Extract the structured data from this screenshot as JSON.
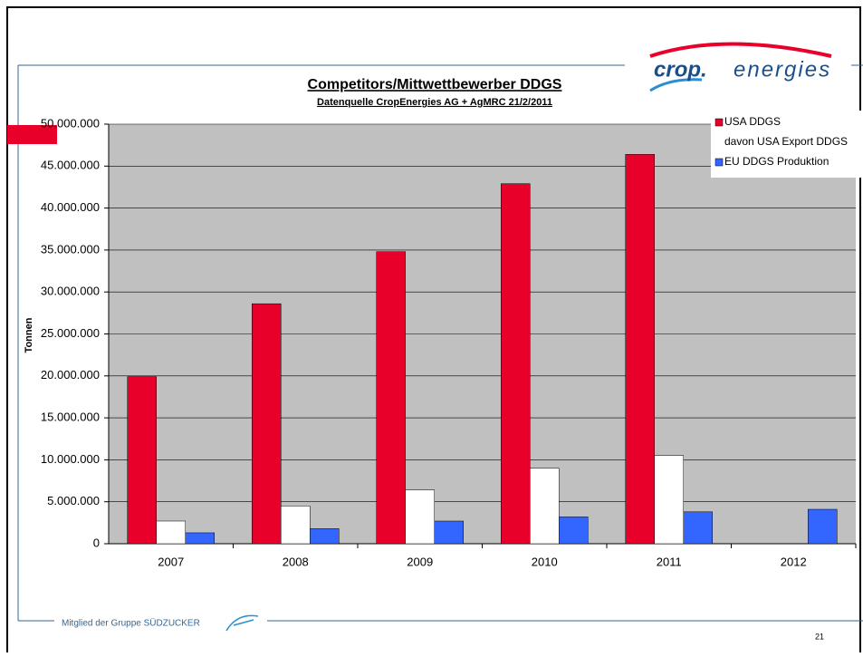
{
  "logo": {
    "part1": "crop.",
    "part2": "energies"
  },
  "footer": "Mitglied der Gruppe SÜDZUCKER",
  "page_number": "21",
  "chart_data": {
    "type": "bar",
    "title": "Competitors/Mittwettbewerber  DDGS",
    "subtitle": "Datenquelle CropEnergies AG + AgMRC 21/2/2011",
    "y_label": "Tonnen",
    "categories": [
      "2007",
      "2008",
      "2009",
      "2010",
      "2011",
      "2012"
    ],
    "series": [
      {
        "name": "USA DDGS",
        "color": "#e8002a",
        "values": [
          19900000,
          28600000,
          34800000,
          42900000,
          46400000,
          null
        ]
      },
      {
        "name": "davon USA Export DDGS",
        "color": "#ffffff",
        "values": [
          2700000,
          4500000,
          6400000,
          9000000,
          10500000,
          null
        ]
      },
      {
        "name": "EU DDGS Produktion",
        "color": "#3366ff",
        "values": [
          1300000,
          1800000,
          2700000,
          3200000,
          3800000,
          4100000
        ]
      }
    ],
    "ylim": [
      0,
      50000000
    ],
    "yticks": [
      0,
      {
        "value": 5000000,
        "label": "5.000.000"
      },
      {
        "value": 10000000,
        "label": "10.000.000"
      },
      {
        "value": 15000000,
        "label": "15.000.000"
      },
      {
        "value": 20000000,
        "label": "20.000.000"
      },
      {
        "value": 25000000,
        "label": "25.000.000"
      },
      {
        "value": 30000000,
        "label": "30.000.000"
      },
      {
        "value": 35000000,
        "label": "35.000.000"
      },
      {
        "value": 40000000,
        "label": "40.000.000"
      },
      {
        "value": 45000000,
        "label": "45.000.000"
      },
      {
        "value": 50000000,
        "label": "50.000.000"
      }
    ],
    "grid": true,
    "legend": "top-right",
    "plot_background": "#c0c0c0"
  }
}
